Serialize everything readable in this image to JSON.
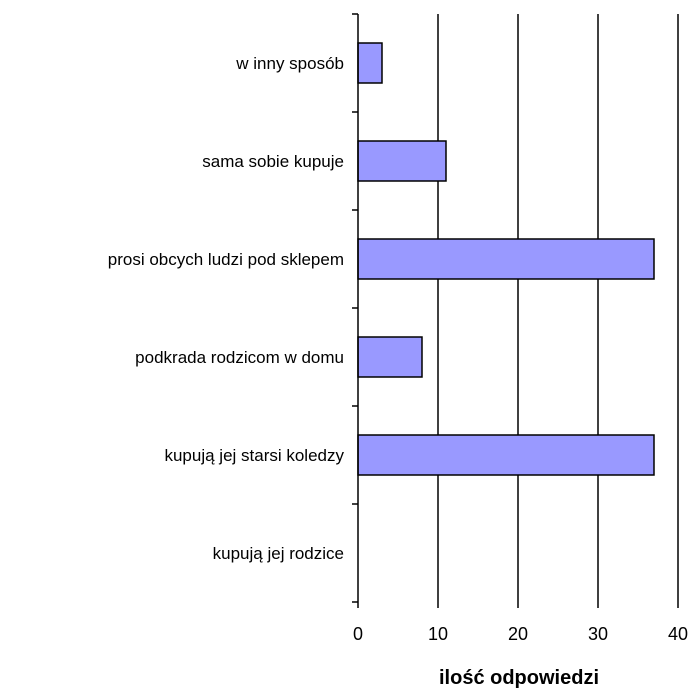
{
  "chart_data": {
    "type": "bar",
    "orientation": "horizontal",
    "categories": [
      "w inny sposób",
      "sama sobie kupuje",
      "prosi obcych ludzi pod sklepem",
      "podkrada rodzicom w domu",
      "kupują jej starsi koledzy",
      "kupują jej rodzice"
    ],
    "values": [
      3,
      11,
      37,
      8,
      37,
      0
    ],
    "xlabel": "ilość odpowiedzi",
    "xlim": [
      0,
      40
    ],
    "xticks": [
      "0",
      "10",
      "20",
      "30",
      "40"
    ],
    "grid": "vertical",
    "colors": {
      "bar_fill": "#9999ff",
      "bar_stroke": "#000000",
      "grid": "#000000",
      "axis": "#000000"
    }
  }
}
